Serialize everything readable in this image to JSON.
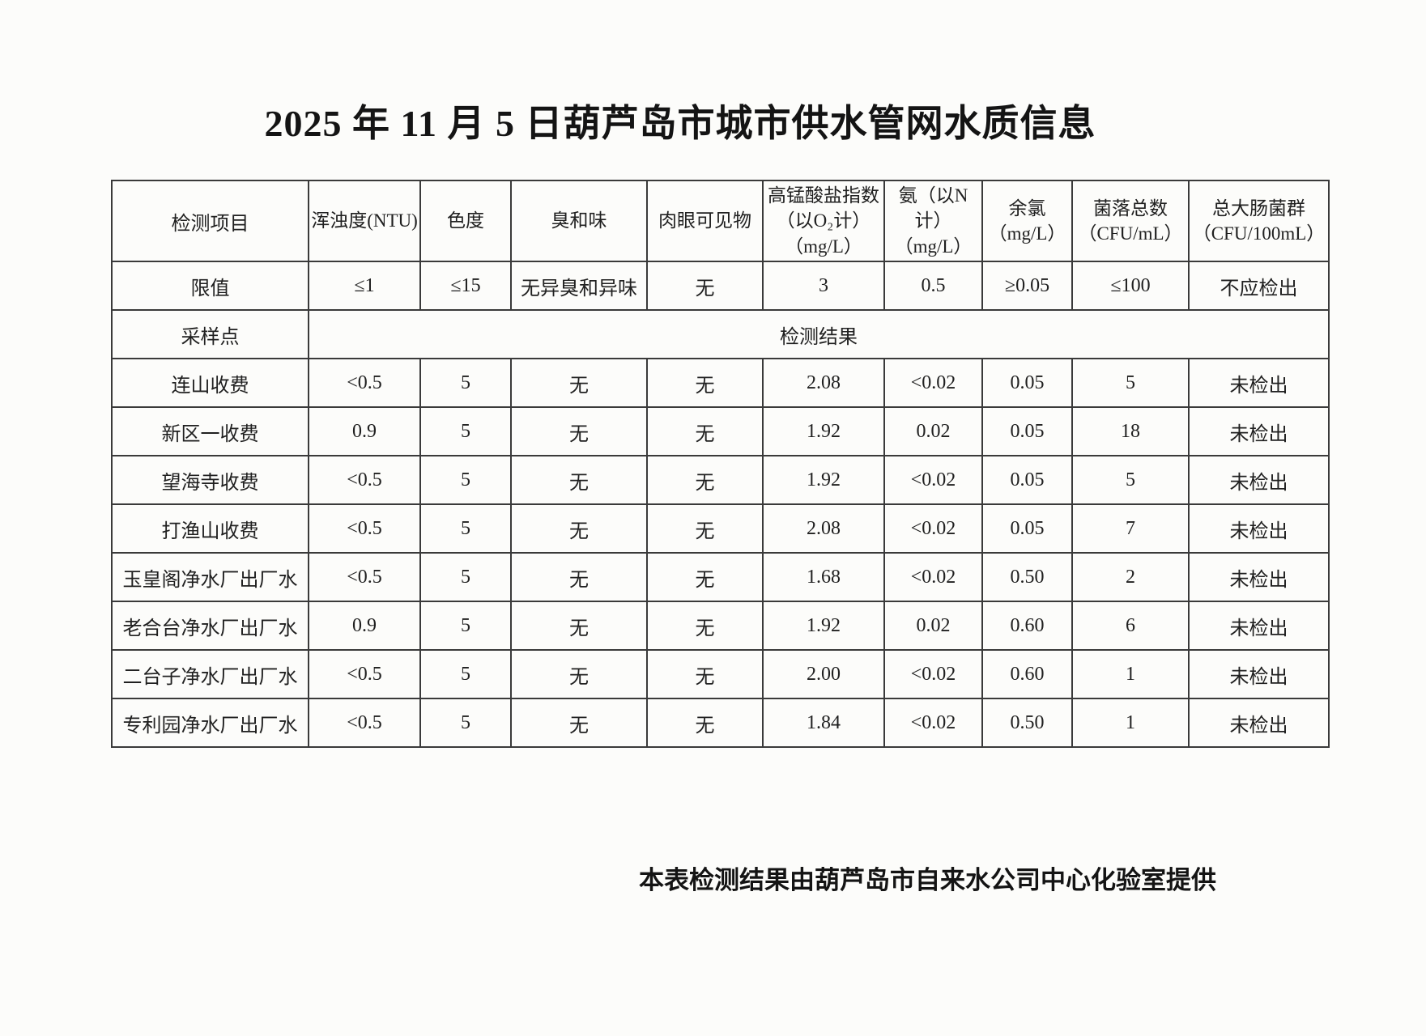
{
  "page": {
    "title": "2025 年 11 月 5 日葫芦岛市城市供水管网水质信息",
    "footer_note": "本表检测结果由葫芦岛市自来水公司中心化验室提供"
  },
  "colors": {
    "paper": "#fcfcfa",
    "ink": "#1c1c1c",
    "table_border": "#3a3a3a"
  },
  "table": {
    "header": {
      "item_label": "检测项目",
      "columns": [
        {
          "lines": [
            "浑浊度(NTU)"
          ]
        },
        {
          "lines": [
            "色度"
          ]
        },
        {
          "lines": [
            "臭和味"
          ]
        },
        {
          "lines": [
            "肉眼可见物"
          ]
        },
        {
          "lines": [
            "高锰酸盐指数",
            "（以O₂计）",
            "（mg/L）"
          ]
        },
        {
          "lines": [
            "氨（以N计）",
            "（mg/L）"
          ]
        },
        {
          "lines": [
            "余氯",
            "（mg/L）"
          ]
        },
        {
          "lines": [
            "菌落总数",
            "（CFU/mL）"
          ]
        },
        {
          "lines": [
            "总大肠菌群",
            "（CFU/100mL）"
          ]
        }
      ]
    },
    "limit_row": {
      "label": "限值",
      "values": [
        "≤1",
        "≤15",
        "无异臭和异味",
        "无",
        "3",
        "0.5",
        "≥0.05",
        "≤100",
        "不应检出"
      ]
    },
    "section_row": {
      "label": "采样点",
      "merged_value": "检测结果"
    },
    "rows": [
      {
        "label": "连山收费",
        "values": [
          "<0.5",
          "5",
          "无",
          "无",
          "2.08",
          "<0.02",
          "0.05",
          "5",
          "未检出"
        ]
      },
      {
        "label": "新区一收费",
        "values": [
          "0.9",
          "5",
          "无",
          "无",
          "1.92",
          "0.02",
          "0.05",
          "18",
          "未检出"
        ]
      },
      {
        "label": "望海寺收费",
        "values": [
          "<0.5",
          "5",
          "无",
          "无",
          "1.92",
          "<0.02",
          "0.05",
          "5",
          "未检出"
        ]
      },
      {
        "label": "打渔山收费",
        "values": [
          "<0.5",
          "5",
          "无",
          "无",
          "2.08",
          "<0.02",
          "0.05",
          "7",
          "未检出"
        ]
      },
      {
        "label": "玉皇阁净水厂出厂水",
        "values": [
          "<0.5",
          "5",
          "无",
          "无",
          "1.68",
          "<0.02",
          "0.50",
          "2",
          "未检出"
        ]
      },
      {
        "label": "老合台净水厂出厂水",
        "values": [
          "0.9",
          "5",
          "无",
          "无",
          "1.92",
          "0.02",
          "0.60",
          "6",
          "未检出"
        ]
      },
      {
        "label": "二台子净水厂出厂水",
        "values": [
          "<0.5",
          "5",
          "无",
          "无",
          "2.00",
          "<0.02",
          "0.60",
          "1",
          "未检出"
        ]
      },
      {
        "label": "专利园净水厂出厂水",
        "values": [
          "<0.5",
          "5",
          "无",
          "无",
          "1.84",
          "<0.02",
          "0.50",
          "1",
          "未检出"
        ]
      }
    ]
  }
}
